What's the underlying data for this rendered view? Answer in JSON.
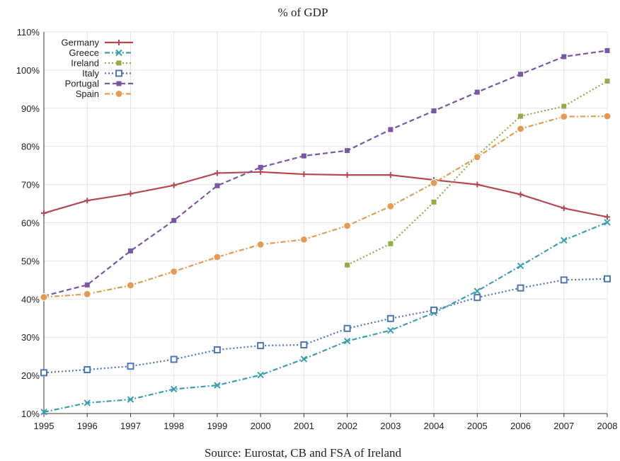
{
  "chart_data": {
    "type": "line",
    "title": "",
    "subtitle": "% of GDP",
    "source": "Source: Eurostat, CB and FSA of Ireland",
    "xlabel": "",
    "ylabel": "",
    "x": [
      "1995",
      "1996",
      "1997",
      "1998",
      "1999",
      "2000",
      "2001",
      "2002",
      "2003",
      "2004",
      "2005",
      "2006",
      "2007",
      "2008"
    ],
    "xlim": [
      1995,
      2008
    ],
    "ylim": [
      10,
      110
    ],
    "yticks": [
      10,
      20,
      30,
      40,
      50,
      60,
      70,
      80,
      90,
      100,
      110
    ],
    "ytick_labels": [
      "10%",
      "20%",
      "30%",
      "40%",
      "50%",
      "60%",
      "70%",
      "80%",
      "90%",
      "100%",
      "110%"
    ],
    "grid": true,
    "legend_position": "top-left",
    "series": [
      {
        "name": "Germany",
        "color": "#b5484f",
        "dash": "solid",
        "marker": "plus",
        "values": [
          62.5,
          65.8,
          67.6,
          69.8,
          73.0,
          73.3,
          72.7,
          72.5,
          72.5,
          71.2,
          70.0,
          67.4,
          63.8,
          61.5
        ]
      },
      {
        "name": "Greece",
        "color": "#3a9fb5",
        "dash": "dashdot",
        "marker": "x",
        "values": [
          10.4,
          12.8,
          13.7,
          16.4,
          17.4,
          20.1,
          24.3,
          29.0,
          31.8,
          36.4,
          42.1,
          48.7,
          55.4,
          60.1
        ]
      },
      {
        "name": "Ireland",
        "color": "#8fae48",
        "dash": "dotted",
        "marker": "square-filled",
        "values": [
          null,
          null,
          null,
          null,
          null,
          null,
          null,
          48.9,
          54.5,
          65.4,
          77.6,
          87.9,
          90.5,
          97.1
        ]
      },
      {
        "name": "Italy",
        "color": "#4a78b8",
        "dash": "dotted",
        "marker": "square-open",
        "values": [
          20.7,
          21.5,
          22.4,
          24.2,
          26.7,
          27.8,
          28.0,
          32.3,
          34.9,
          37.1,
          40.4,
          42.9,
          45.0,
          45.3
        ]
      },
      {
        "name": "Portugal",
        "color": "#7b55a6",
        "dash": "dashed",
        "marker": "square-filled",
        "values": [
          40.8,
          43.7,
          52.6,
          60.6,
          69.7,
          74.5,
          77.5,
          78.9,
          84.4,
          89.3,
          94.2,
          98.9,
          103.5,
          105.1
        ]
      },
      {
        "name": "Spain",
        "color": "#e59a4f",
        "dash": "dashdot",
        "marker": "circle",
        "values": [
          40.5,
          41.3,
          43.6,
          47.2,
          51.0,
          54.3,
          55.6,
          59.2,
          64.3,
          70.4,
          77.2,
          84.6,
          87.8,
          87.9
        ]
      }
    ]
  }
}
